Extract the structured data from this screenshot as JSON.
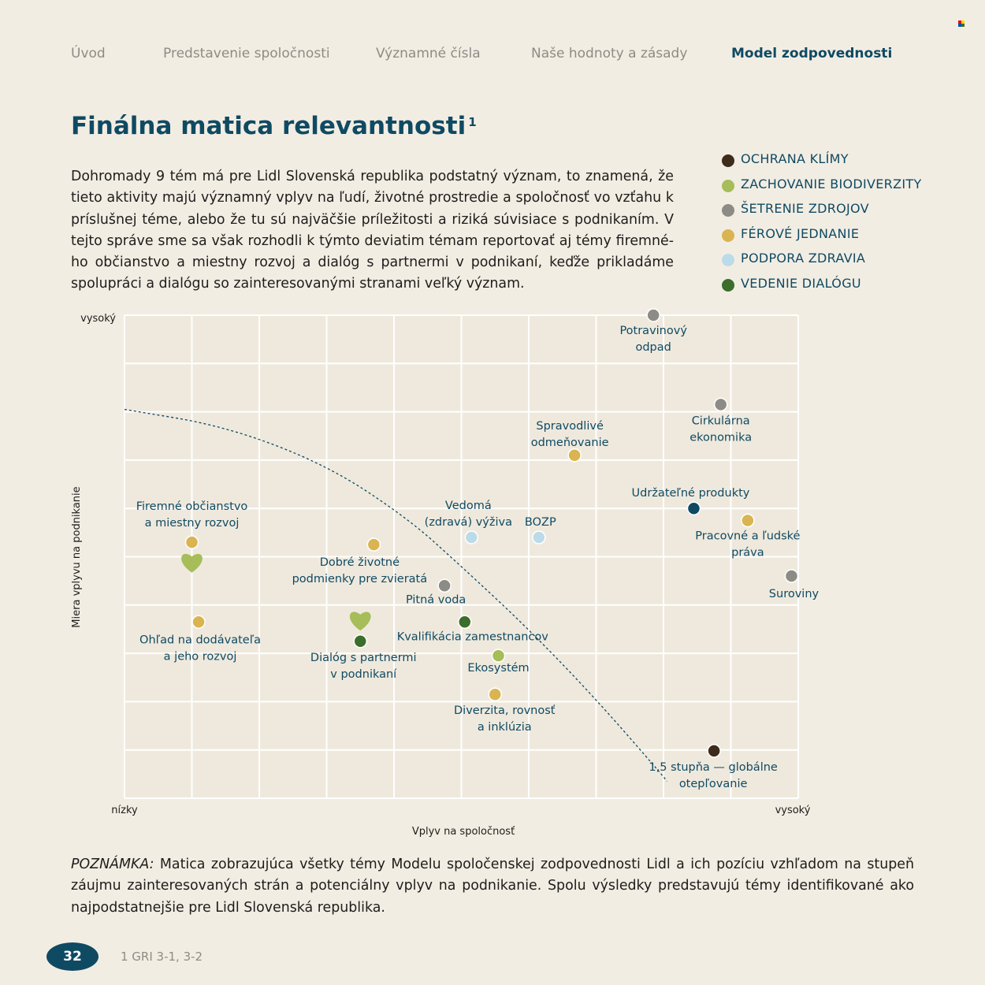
{
  "nav": {
    "items": [
      "Úvod",
      "Predstavenie spoločnosti",
      "Významné čísla",
      "Naše hodnoty a zásady",
      "Model zodpovednosti"
    ],
    "active_index": 4
  },
  "title": "Finálna matica relevantnosti",
  "title_sup": "1",
  "intro": "Dohromady 9 tém má pre Lidl Slovenská republika podstatný význam, to znamená, že tieto aktivity majú významný vplyv na ľudí, životné prostredie a spoločnosť vo vzťahu k príslušnej téme, alebo že tu sú najväčšie príležitosti a riziká súvisiace s podnikaním. V tejto správe sme sa však rozhodli k týmto deviatim témam reportovať aj témy firemné­ho občianstvo a miestny rozvoj a dialóg s partnermi v podnikaní, keďže prikladáme spo­lupráci a dialógu so zainteresovanými stranami veľký význam.",
  "legend": [
    {
      "label": "OCHRANA KLÍMY",
      "color": "#3d2b1b"
    },
    {
      "label": "ZACHOVANIE BIODIVERZITY",
      "color": "#a6bd5a"
    },
    {
      "label": "ŠETRENIE ZDROJOV",
      "color": "#8c8b85"
    },
    {
      "label": "FÉROVÉ JEDNANIE",
      "color": "#d9b450"
    },
    {
      "label": "PODPORA ZDRAVIA",
      "color": "#bcdbe8"
    },
    {
      "label": "VEDENIE DIALÓGU",
      "color": "#3b6d2b"
    }
  ],
  "chart_data": {
    "type": "scatter",
    "xlabel": "Vplyv na spoločnosť",
    "ylabel": "Miera vplyvu na podnikanie",
    "x_low": "nízky",
    "x_high": "vysoký",
    "y_low": "",
    "y_high": "vysoký",
    "xlim": [
      0,
      10
    ],
    "ylim": [
      0,
      10
    ],
    "grid": true,
    "points": [
      {
        "lines": [
          "Potravinový",
          "odpad"
        ],
        "x": 7.85,
        "y": 10.0,
        "color": "#8c8b85",
        "shape": "dot"
      },
      {
        "lines": [
          "Cirkulárna",
          "ekonomika"
        ],
        "x": 8.85,
        "y": 8.15,
        "color": "#8c8b85",
        "shape": "dot"
      },
      {
        "lines": [
          "Spravodlivé",
          "odmeňovanie"
        ],
        "x": 6.68,
        "y": 7.1,
        "color": "#d9b450",
        "shape": "dot"
      },
      {
        "lines": [
          "Udržateľné produkty"
        ],
        "x": 8.45,
        "y": 6.0,
        "color": "#0f4a63",
        "shape": "dot"
      },
      {
        "lines": [
          "Pracovné a ľudské",
          "práva"
        ],
        "x": 9.25,
        "y": 5.75,
        "color": "#d9b450",
        "shape": "dot"
      },
      {
        "lines": [
          "Suroviny"
        ],
        "x": 9.9,
        "y": 4.6,
        "color": "#8c8b85",
        "shape": "dot"
      },
      {
        "lines": [
          "Vedomá",
          "(zdravá) výživa"
        ],
        "x": 5.15,
        "y": 5.4,
        "color": "#bcdbe8",
        "shape": "dot"
      },
      {
        "lines": [
          "BOZP"
        ],
        "x": 6.15,
        "y": 5.4,
        "color": "#bcdbe8",
        "shape": "dot"
      },
      {
        "lines": [
          "Firemné občianstvo",
          "a miestny rozvoj"
        ],
        "x": 1.0,
        "y": 5.3,
        "color": "#d9b450",
        "shape": "dot"
      },
      {
        "lines": [],
        "x": 1.0,
        "y": 4.9,
        "color": "#a6bd5a",
        "shape": "heart"
      },
      {
        "lines": [
          "Dobré životné",
          "podmienky pre zvieratá"
        ],
        "x": 3.7,
        "y": 5.25,
        "color": "#d9b450",
        "shape": "dot"
      },
      {
        "lines": [
          "Pitná voda"
        ],
        "x": 4.75,
        "y": 4.4,
        "color": "#8c8b85",
        "shape": "dot"
      },
      {
        "lines": [
          "Kvalifikácia zamestnancov"
        ],
        "x": 5.05,
        "y": 3.65,
        "color": "#3b6d2b",
        "shape": "dot"
      },
      {
        "lines": [
          "Ohľad na dodávateľa",
          "a jeho rozvoj"
        ],
        "x": 1.1,
        "y": 3.65,
        "color": "#d9b450",
        "shape": "dot"
      },
      {
        "lines": [],
        "x": 3.5,
        "y": 3.7,
        "color": "#a6bd5a",
        "shape": "heart"
      },
      {
        "lines": [
          "Dialóg s partnermi",
          "v podnikaní"
        ],
        "x": 3.5,
        "y": 3.25,
        "color": "#3b6d2b",
        "shape": "dot"
      },
      {
        "lines": [
          "Ekosystém"
        ],
        "x": 5.55,
        "y": 2.95,
        "color": "#a6bd5a",
        "shape": "dot"
      },
      {
        "lines": [
          "Diverzita, rovnosť",
          "a inklúzia"
        ],
        "x": 5.5,
        "y": 2.15,
        "color": "#d9b450",
        "shape": "dot"
      },
      {
        "lines": [
          "1,5 stupňa — globálne",
          "otepľovanie"
        ],
        "x": 8.75,
        "y": 0.98,
        "color": "#3d2b1b",
        "shape": "dot"
      }
    ],
    "threshold_curve": [
      [
        0,
        8.05
      ],
      [
        1.5,
        7.7
      ],
      [
        3,
        6.9
      ],
      [
        4.2,
        5.8
      ],
      [
        5,
        4.8
      ],
      [
        6,
        3.5
      ],
      [
        7,
        2.05
      ],
      [
        8,
        0.45
      ],
      [
        8.05,
        0.35
      ]
    ]
  },
  "note_label": "POZNÁMKA:",
  "note_text": " Matica zobrazujúca všetky témy Modelu spoločenskej zodpovednosti Lidl a ich pozíciu vzhľadom na stupeň záujmu zainteresovaných strán a potenciálny vplyv na podnikanie. Spolu výsledky predstavujú témy identifikované ako naj­podstatnejšie pre Lidl Slovenská republika.",
  "page_number": "32",
  "footnote": "1 GRI 3-1, 3-2"
}
